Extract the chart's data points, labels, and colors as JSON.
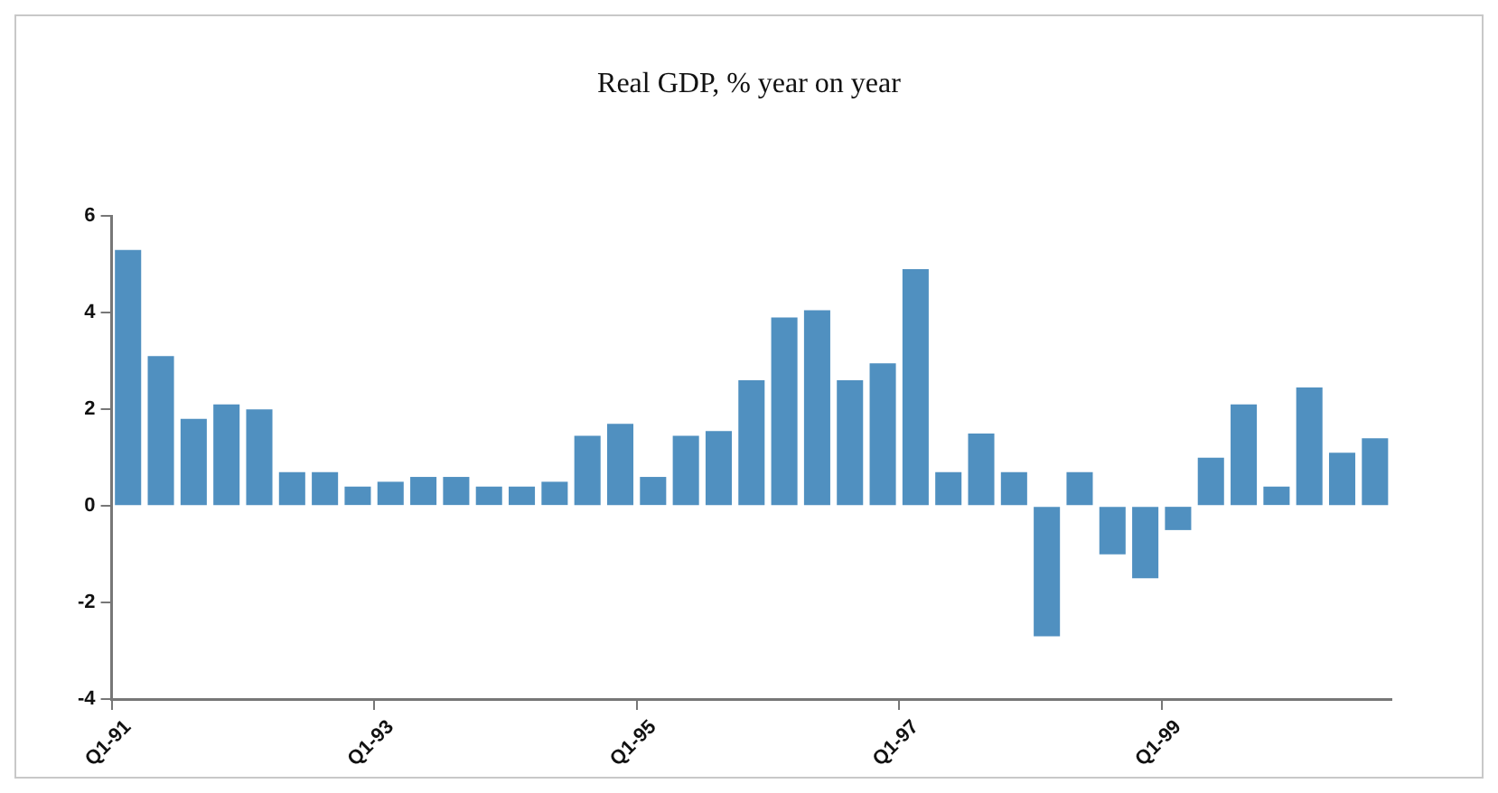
{
  "chart_data": {
    "type": "bar",
    "title": "Real GDP, % year on year",
    "categories": [
      "Q1-91",
      null,
      null,
      null,
      null,
      null,
      null,
      null,
      "Q1-93",
      null,
      null,
      null,
      null,
      null,
      null,
      null,
      "Q1-95",
      null,
      null,
      null,
      null,
      null,
      null,
      null,
      "Q1-97",
      null,
      null,
      null,
      null,
      null,
      null,
      null,
      "Q1-99",
      null,
      null,
      null,
      null,
      null,
      null
    ],
    "values": [
      5.3,
      3.1,
      1.8,
      2.1,
      2.0,
      0.7,
      0.7,
      0.4,
      0.5,
      0.6,
      0.6,
      0.4,
      0.4,
      0.5,
      1.45,
      1.7,
      0.6,
      1.45,
      1.55,
      2.6,
      3.9,
      4.05,
      2.6,
      2.95,
      4.9,
      0.7,
      1.5,
      0.7,
      -2.7,
      0.7,
      -1.0,
      -1.5,
      -0.5,
      1.0,
      2.1,
      0.4,
      2.45,
      1.1,
      1.4
    ],
    "color": "#5090c0",
    "ylim": [
      -4,
      6
    ],
    "yticks": [
      -4,
      -2,
      0,
      2,
      4,
      6
    ],
    "grid": false,
    "legend": false
  }
}
